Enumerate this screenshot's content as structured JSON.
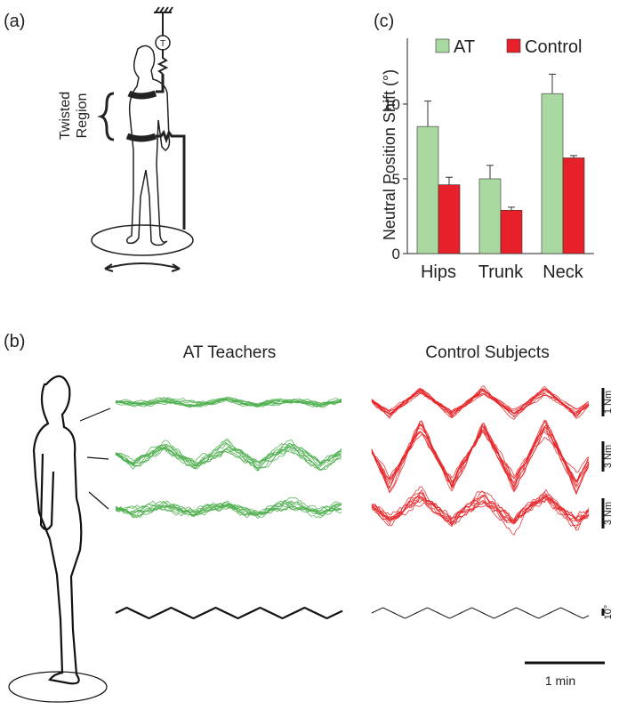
{
  "figure": {
    "panel_labels": [
      "(a)",
      "(b)",
      "(c)"
    ],
    "apparatus": {
      "twisted_region": [
        "Twisted",
        "Region"
      ],
      "torque_sensor": "T"
    },
    "traces": {
      "group_titles": [
        "AT Teachers",
        "Control Subjects"
      ],
      "scale_labels": [
        "1 Nm",
        "3 Nm",
        "3 Nm",
        "10°"
      ],
      "time_scale": "1 min"
    }
  },
  "chart_data": {
    "type": "bar",
    "ylabel": "Neutral Position Shift (°)",
    "categories": [
      "Hips",
      "Trunk",
      "Neck"
    ],
    "series": [
      {
        "name": "AT",
        "color": "#a9d9a0",
        "values": [
          8.5,
          5.0,
          10.7
        ],
        "errors": [
          1.7,
          0.9,
          1.3
        ]
      },
      {
        "name": "Control",
        "color": "#e8202a",
        "values": [
          4.6,
          2.9,
          6.4
        ],
        "errors": [
          0.5,
          0.2,
          0.15
        ]
      }
    ],
    "ylim": [
      0,
      14.4
    ],
    "yticks": [
      0,
      5,
      10
    ],
    "grid": false,
    "legend": "top"
  }
}
